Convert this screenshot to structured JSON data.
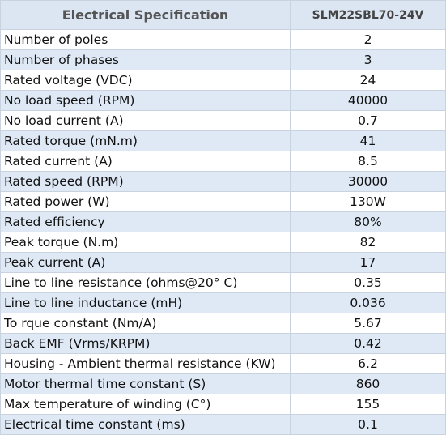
{
  "table": {
    "header": [
      "Electrical Specification",
      "SLM22SBL70-24V"
    ],
    "rows": [
      [
        "Number of poles",
        "2"
      ],
      [
        "Number of phases",
        "3"
      ],
      [
        "Rated voltage (VDC)",
        "24"
      ],
      [
        "No load speed (RPM)",
        "40000"
      ],
      [
        "No load current (A)",
        "0.7"
      ],
      [
        "Rated torque (mN.m)",
        "41"
      ],
      [
        "Rated current (A)",
        "8.5"
      ],
      [
        "Rated speed (RPM)",
        "30000"
      ],
      [
        "Rated power (W)",
        "130W"
      ],
      [
        "Rated efficiency",
        "80%"
      ],
      [
        "Peak torque (N.m)",
        "82"
      ],
      [
        "Peak current (A)",
        "17"
      ],
      [
        "Line to line resistance (ohms@20° C)",
        "0.35"
      ],
      [
        "Line to line inductance (mH)",
        "0.036"
      ],
      [
        "To rque constant (Nm/A)",
        "5.67"
      ],
      [
        "Back EMF (Vrms/KRPM)",
        "0.42"
      ],
      [
        "Housing - Ambient thermal resistance (KW)",
        "6.2"
      ],
      [
        "Motor thermal time constant (S)",
        "860"
      ],
      [
        "Max temperature of winding (C°)",
        "155"
      ],
      [
        "Electrical time constant (ms)",
        "0.1"
      ]
    ]
  }
}
